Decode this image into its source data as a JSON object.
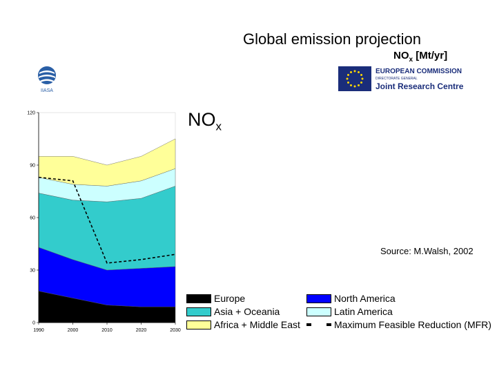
{
  "header": {
    "title": "Global emission projection",
    "subtitle_main": "NO",
    "subtitle_sub": "x",
    "subtitle_unit": " [Mt/yr]"
  },
  "logos": {
    "iiasa_text": "IIASA",
    "ec_line1": "EUROPEAN COMMISSION",
    "ec_line2": "DIRECTORATE GENERAL",
    "ec_line3": "Joint Research Centre"
  },
  "label": {
    "main": "NO",
    "sub": "x"
  },
  "source": "Source: M.Walsh, 2002",
  "colors": {
    "europe": "#000000",
    "north_america": "#0000ff",
    "asia_oceania": "#33cccc",
    "latin_america": "#ccffff",
    "africa_middle_east": "#ffff99"
  },
  "legend": [
    {
      "key": "europe",
      "label": "Europe",
      "style": "box"
    },
    {
      "key": "north_america",
      "label": "North America",
      "style": "box"
    },
    {
      "key": "asia_oceania",
      "label": "Asia + Oceania",
      "style": "box"
    },
    {
      "key": "latin_america",
      "label": "Latin America",
      "style": "box"
    },
    {
      "key": "africa_middle_east",
      "label": "Africa + Middle East",
      "style": "box"
    },
    {
      "key": "mfr",
      "label": "Maximum Feasible Reduction (MFR)",
      "style": "dash"
    }
  ],
  "chart_data": {
    "type": "area",
    "stacked": true,
    "title": "",
    "xlabel": "",
    "ylabel": "",
    "x": [
      1990,
      2000,
      2010,
      2020,
      2030
    ],
    "ylim": [
      0,
      120
    ],
    "yticks": [
      0,
      30,
      60,
      90,
      120
    ],
    "series": [
      {
        "name": "Europe",
        "key": "europe",
        "values": [
          18,
          14,
          10,
          9,
          9
        ]
      },
      {
        "name": "North America",
        "key": "north_america",
        "values": [
          25,
          22,
          20,
          22,
          23
        ]
      },
      {
        "name": "Asia + Oceania",
        "key": "asia_oceania",
        "values": [
          31,
          34,
          39,
          40,
          46
        ]
      },
      {
        "name": "Latin America",
        "key": "latin_america",
        "values": [
          9,
          9,
          9,
          10,
          10
        ]
      },
      {
        "name": "Africa + Middle East",
        "key": "africa_middle_east",
        "values": [
          12,
          16,
          12,
          14,
          17
        ]
      }
    ],
    "mfr_line": {
      "name": "Maximum Feasible Reduction (MFR)",
      "x": [
        1990,
        2000,
        2010,
        2020,
        2030
      ],
      "values": [
        83,
        81,
        34,
        36,
        39
      ]
    }
  }
}
